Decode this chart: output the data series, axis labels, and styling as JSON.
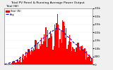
{
  "title": "Total PV Panel & Running Average Power Output",
  "subtitle": "Total (W)",
  "background_color": "#f0f0f0",
  "plot_bg": "#ffffff",
  "bar_color": "#ff0000",
  "avg_line_color": "#0000cc",
  "ylim": [
    0,
    3500
  ],
  "ytick_labels": [
    "3.5k",
    "3.0k",
    "2.5k",
    "2.0k",
    "1.5k",
    "1.0k",
    "500",
    "0"
  ],
  "ytick_vals": [
    3500,
    3000,
    2500,
    2000,
    1500,
    1000,
    500,
    0
  ],
  "num_bars": 100,
  "grid_color": "#aaaaaa",
  "right_margin_color": "#d0d0d0"
}
